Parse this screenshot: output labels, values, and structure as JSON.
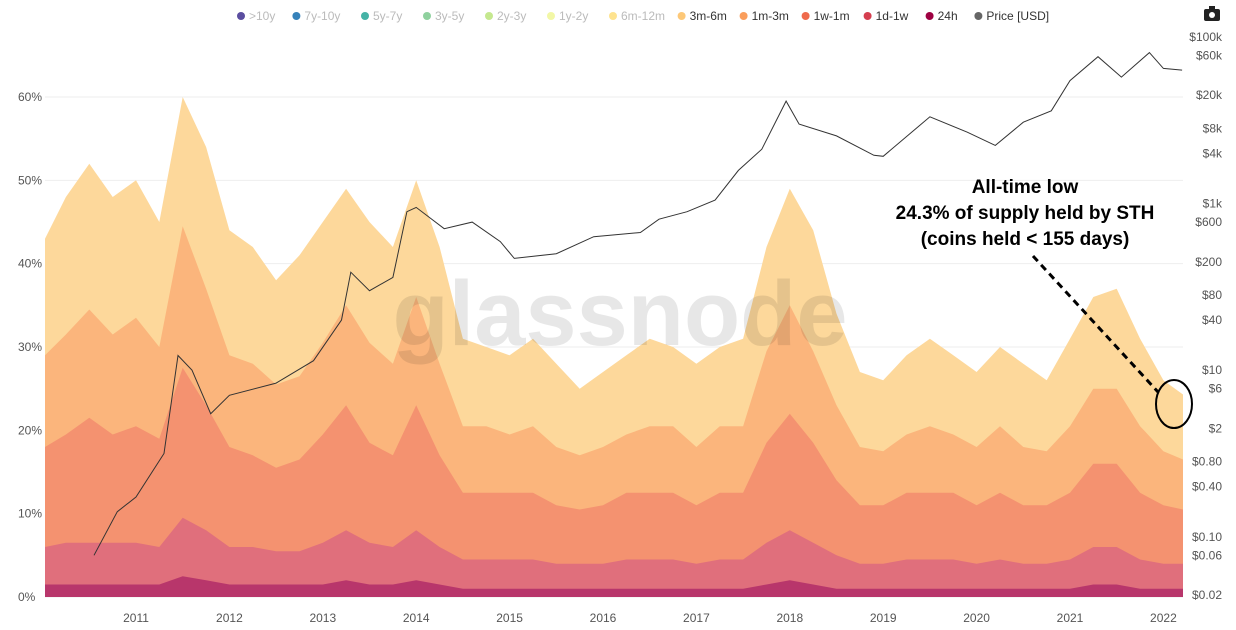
{
  "chart_data": {
    "type": "area",
    "stacked": true,
    "title": "",
    "watermark": "glassnode",
    "legend": [
      {
        "name": ">10y",
        "color": "#5b4ea0",
        "active": false
      },
      {
        "name": "7y-10y",
        "color": "#3682ba",
        "active": false
      },
      {
        "name": "5y-7y",
        "color": "#45b3a6",
        "active": false
      },
      {
        "name": "3y-5y",
        "color": "#8fd19e",
        "active": false
      },
      {
        "name": "2y-3y",
        "color": "#c5e88f",
        "active": false
      },
      {
        "name": "1y-2y",
        "color": "#f2f7a6",
        "active": false
      },
      {
        "name": "6m-12m",
        "color": "#fee38f",
        "active": false
      },
      {
        "name": "3m-6m",
        "color": "#fdc878",
        "active": true
      },
      {
        "name": "1m-3m",
        "color": "#fa9e5c",
        "active": true
      },
      {
        "name": "1w-1m",
        "color": "#ef6a4c",
        "active": true
      },
      {
        "name": "1d-1w",
        "color": "#d53e4f",
        "active": true
      },
      {
        "name": "24h",
        "color": "#9e0142",
        "active": true
      },
      {
        "name": "Price [USD]",
        "color": "#666666",
        "active": true
      }
    ],
    "x_start": 2010.0,
    "x_step": 0.25,
    "x_ticks": [
      "2011",
      "2012",
      "2013",
      "2014",
      "2015",
      "2016",
      "2017",
      "2018",
      "2019",
      "2020",
      "2021",
      "2022"
    ],
    "y_left_ticks": [
      "0%",
      "10%",
      "20%",
      "30%",
      "40%",
      "50%",
      "60%"
    ],
    "y_left_range": [
      0,
      60
    ],
    "y_right_ticks": [
      "$0.02",
      "$0.06",
      "$0.10",
      "$0.40",
      "$0.80",
      "$2",
      "$6",
      "$10",
      "$40",
      "$80",
      "$200",
      "$600",
      "$1k",
      "$4k",
      "$8k",
      "$20k",
      "$60k",
      "$100k"
    ],
    "y_right_values": [
      0.02,
      0.06,
      0.1,
      0.4,
      0.8,
      2,
      6,
      10,
      40,
      80,
      200,
      600,
      1000,
      4000,
      8000,
      20000,
      60000,
      100000
    ],
    "y_right_range": [
      0.02,
      100000
    ],
    "y_right_scale": "log",
    "series": [
      {
        "name": "24h",
        "fill": "#b8366b",
        "values": [
          1.5,
          1.5,
          1.5,
          1.5,
          1.5,
          1.5,
          2.5,
          2,
          1.5,
          1.5,
          1.5,
          1.5,
          1.5,
          2,
          1.5,
          1.5,
          2,
          1.5,
          1,
          1,
          1,
          1,
          1,
          1,
          1,
          1,
          1,
          1,
          1,
          1,
          1,
          1.5,
          2,
          1.5,
          1,
          1,
          1,
          1,
          1,
          1,
          1,
          1,
          1,
          1,
          1,
          1.5,
          1.5,
          1,
          1,
          1
        ]
      },
      {
        "name": "1d-1w",
        "fill": "#e06f7c",
        "values": [
          4.5,
          5,
          5,
          5,
          5,
          4.5,
          7,
          6,
          4.5,
          4.5,
          4,
          4,
          5,
          6,
          5,
          4.5,
          6,
          4.5,
          3.5,
          3.5,
          3.5,
          3.5,
          3,
          3,
          3,
          3.5,
          3.5,
          3.5,
          3,
          3.5,
          3.5,
          5,
          6,
          5,
          4,
          3,
          3,
          3.5,
          3.5,
          3.5,
          3,
          3.5,
          3,
          3,
          3.5,
          4.5,
          4.5,
          3.5,
          3,
          3
        ]
      },
      {
        "name": "1w-1m",
        "fill": "#f49270",
        "values": [
          12,
          13,
          15,
          13,
          14,
          13,
          18,
          15,
          12,
          11,
          10,
          11,
          13,
          15,
          12,
          11,
          15,
          11,
          8,
          8,
          8,
          8,
          7,
          6.5,
          7,
          8,
          8,
          8,
          7,
          8,
          8,
          12,
          14,
          12,
          9,
          7,
          7,
          8,
          8,
          8,
          7,
          8,
          7,
          7,
          8,
          10,
          10,
          8,
          7,
          6.5
        ]
      },
      {
        "name": "1m-3m",
        "fill": "#fbb57c",
        "values": [
          11,
          12,
          13,
          12,
          13,
          11,
          17,
          14,
          11,
          11,
          10,
          10,
          11,
          12,
          12,
          11,
          13,
          11,
          8,
          8,
          7,
          8,
          7,
          6.5,
          7,
          7,
          8,
          8,
          7,
          8,
          8,
          11,
          13,
          11,
          9,
          7,
          6.5,
          7,
          8,
          7,
          7,
          8,
          7,
          6.5,
          8,
          9,
          9,
          8,
          6.5,
          6
        ]
      },
      {
        "name": "3m-6m",
        "fill": "#fdd89b",
        "values": [
          14,
          16.5,
          17.5,
          16.5,
          16.5,
          15,
          15.5,
          17,
          15,
          14,
          12.5,
          14.5,
          14.5,
          14,
          14.5,
          14,
          14,
          14,
          10.5,
          9.5,
          9.5,
          10.5,
          10,
          8,
          9,
          9.5,
          10.5,
          9.5,
          10,
          9.5,
          10.5,
          12.5,
          14,
          14.5,
          11,
          9,
          8.5,
          9.5,
          10.5,
          9.5,
          9,
          9.5,
          10,
          8.5,
          10.5,
          11,
          12,
          10.5,
          8.5,
          7.8
        ]
      }
    ],
    "price": {
      "name": "Price [USD]",
      "color": "#333333",
      "points": [
        [
          2010.55,
          0.06
        ],
        [
          2010.8,
          0.2
        ],
        [
          2011.0,
          0.3
        ],
        [
          2011.3,
          1
        ],
        [
          2011.45,
          15
        ],
        [
          2011.6,
          10
        ],
        [
          2011.8,
          3
        ],
        [
          2012.0,
          5
        ],
        [
          2012.5,
          7
        ],
        [
          2012.9,
          13
        ],
        [
          2013.2,
          40
        ],
        [
          2013.3,
          150
        ],
        [
          2013.5,
          90
        ],
        [
          2013.75,
          130
        ],
        [
          2013.9,
          800
        ],
        [
          2014.0,
          900
        ],
        [
          2014.3,
          500
        ],
        [
          2014.6,
          600
        ],
        [
          2014.9,
          350
        ],
        [
          2015.05,
          220
        ],
        [
          2015.5,
          250
        ],
        [
          2015.9,
          400
        ],
        [
          2016.4,
          450
        ],
        [
          2016.6,
          650
        ],
        [
          2016.9,
          800
        ],
        [
          2017.2,
          1100
        ],
        [
          2017.45,
          2500
        ],
        [
          2017.7,
          4500
        ],
        [
          2017.96,
          17000
        ],
        [
          2018.1,
          9000
        ],
        [
          2018.5,
          6500
        ],
        [
          2018.9,
          3800
        ],
        [
          2019.0,
          3700
        ],
        [
          2019.5,
          11000
        ],
        [
          2019.9,
          7200
        ],
        [
          2020.2,
          5000
        ],
        [
          2020.5,
          9500
        ],
        [
          2020.8,
          13000
        ],
        [
          2021.0,
          30000
        ],
        [
          2021.3,
          58000
        ],
        [
          2021.55,
          33000
        ],
        [
          2021.85,
          65000
        ],
        [
          2022.0,
          42000
        ],
        [
          2022.2,
          40000
        ]
      ]
    },
    "annotation": {
      "lines": [
        "All-time low",
        "24.3% of supply held by STH",
        "(coins held < 155 days)"
      ],
      "value_pct": 24.3,
      "x": 2022.15
    }
  },
  "toolbar": {
    "camera_icon": "camera-icon"
  }
}
